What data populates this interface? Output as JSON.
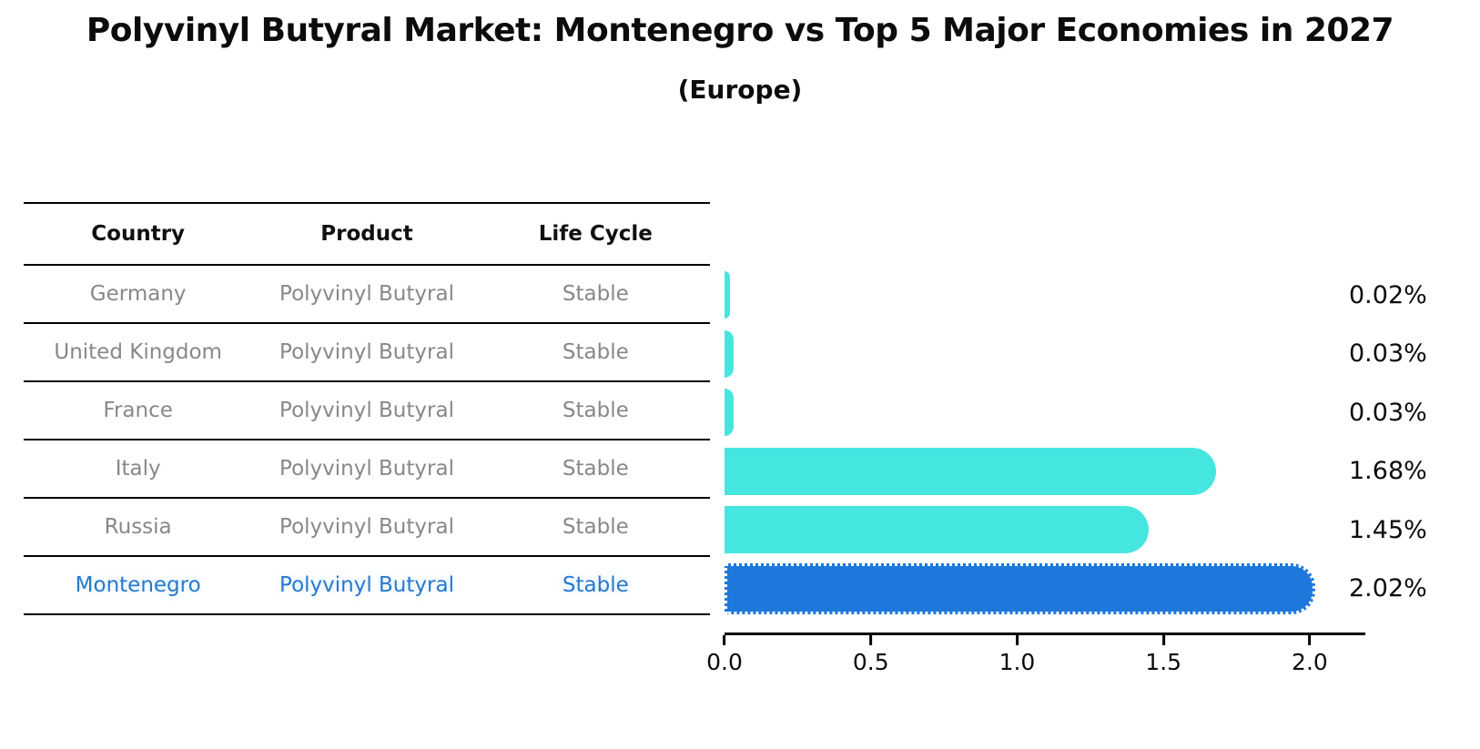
{
  "title": "Polyvinyl Butyral Market: Montenegro vs Top 5 Major Economies in 2027",
  "subtitle": "(Europe)",
  "table": {
    "headers": [
      "Country",
      "Product",
      "Life Cycle"
    ],
    "rows": [
      {
        "country": "Germany",
        "product": "Polyvinyl Butyral",
        "life_cycle": "Stable"
      },
      {
        "country": "United Kingdom",
        "product": "Polyvinyl Butyral",
        "life_cycle": "Stable"
      },
      {
        "country": "France",
        "product": "Polyvinyl Butyral",
        "life_cycle": "Stable"
      },
      {
        "country": "Italy",
        "product": "Polyvinyl Butyral",
        "life_cycle": "Stable"
      },
      {
        "country": "Russia",
        "product": "Polyvinyl Butyral",
        "life_cycle": "Stable"
      },
      {
        "country": "Montenegro",
        "product": "Polyvinyl Butyral",
        "life_cycle": "Stable"
      }
    ],
    "highlight_row_index": 5
  },
  "chart_data": {
    "type": "bar",
    "orientation": "horizontal",
    "title": "Polyvinyl Butyral Market: Montenegro vs Top 5 Major Economies in 2027",
    "subtitle": "(Europe)",
    "categories": [
      "Germany",
      "United Kingdom",
      "France",
      "Italy",
      "Russia",
      "Montenegro"
    ],
    "values": [
      0.02,
      0.03,
      0.03,
      1.68,
      1.45,
      2.02
    ],
    "value_labels": [
      "0.02%",
      "0.03%",
      "0.03%",
      "1.68%",
      "1.45%",
      "2.02%"
    ],
    "unit": "percent",
    "xlabel": "",
    "ylabel": "",
    "x_ticks": [
      0.0,
      0.5,
      1.0,
      1.5,
      2.0
    ],
    "x_tick_labels": [
      "0.0",
      "0.5",
      "1.0",
      "1.5",
      "2.0"
    ],
    "xlim": [
      0,
      2.19
    ],
    "grid": false,
    "legend": false,
    "bar_color": "#46e6e0",
    "highlight_color": "#1e78dc",
    "highlight_index": 5
  },
  "colors": {
    "background": "#ffffff",
    "bar_cyan": "#46e6e0",
    "bar_blue": "#1e78dc",
    "highlight_text": "#2879cd",
    "table_text": "#888888",
    "header_text": "#111111",
    "line": "#000000"
  }
}
